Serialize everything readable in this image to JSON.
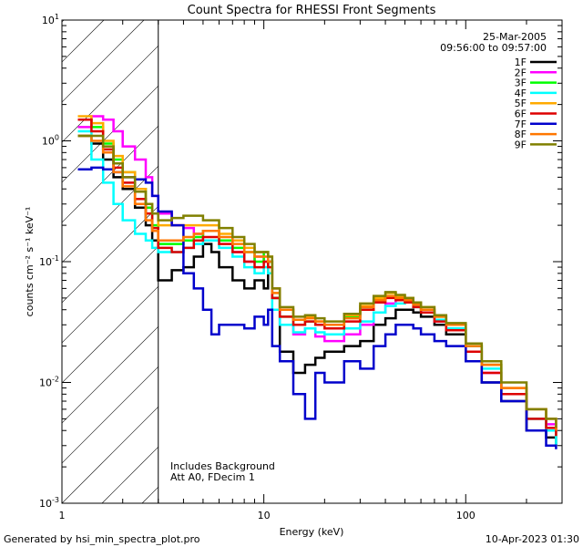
{
  "footer": {
    "generated_by": "Generated by hsi_min_spectra_plot.pro",
    "timestamp": "10-Apr-2023 01:30"
  },
  "chart_data": {
    "type": "line",
    "title": "Count Spectra for RHESSI Front Segments",
    "xlabel": "Energy (keV)",
    "ylabel": "counts cm⁻² s⁻¹ keV⁻¹",
    "x_scale": "log",
    "y_scale": "log",
    "xlim": [
      1,
      300
    ],
    "ylim": [
      0.001,
      10
    ],
    "x_ticks": [
      {
        "value": 1,
        "label": "1"
      },
      {
        "value": 10,
        "label": "10"
      },
      {
        "value": 100,
        "label": "100"
      }
    ],
    "y_ticks": [
      {
        "value": 0.001,
        "base": "10",
        "exp": "-3"
      },
      {
        "value": 0.01,
        "base": "10",
        "exp": "-2"
      },
      {
        "value": 0.1,
        "base": "10",
        "exp": "-1"
      },
      {
        "value": 1,
        "base": "10",
        "exp": "0"
      },
      {
        "value": 10,
        "base": "10",
        "exp": "1"
      }
    ],
    "date": "25-Mar-2005",
    "time_range": "09:56:00 to 09:57:00",
    "shaded_below_keV": 3,
    "annotations": [
      "Includes Background",
      "Att A0, FDecim 1"
    ],
    "series": [
      {
        "name": "1F",
        "color": "#000000",
        "x": [
          1.2,
          1.4,
          1.6,
          1.8,
          2.0,
          2.3,
          2.6,
          2.8,
          3.0,
          3.5,
          4.0,
          4.5,
          5.0,
          5.5,
          6.0,
          7.0,
          8.0,
          9.0,
          10.0,
          10.5,
          11,
          12,
          14,
          16,
          18,
          20,
          25,
          30,
          35,
          40,
          45,
          50,
          55,
          60,
          70,
          80,
          100,
          120,
          150,
          200,
          250,
          280
        ],
        "y": [
          1.1,
          0.95,
          0.7,
          0.5,
          0.4,
          0.28,
          0.2,
          0.15,
          0.07,
          0.085,
          0.09,
          0.11,
          0.14,
          0.12,
          0.09,
          0.07,
          0.06,
          0.07,
          0.06,
          0.1,
          0.05,
          0.018,
          0.012,
          0.014,
          0.016,
          0.018,
          0.02,
          0.022,
          0.03,
          0.034,
          0.04,
          0.04,
          0.038,
          0.035,
          0.03,
          0.025,
          0.015,
          0.01,
          0.007,
          0.004,
          0.0035,
          0.003
        ]
      },
      {
        "name": "2F",
        "color": "#ff00ff",
        "x": [
          1.2,
          1.4,
          1.6,
          1.8,
          2.0,
          2.3,
          2.6,
          2.8,
          3.0,
          3.5,
          4.0,
          4.5,
          5.0,
          6.0,
          7.0,
          8.0,
          9.0,
          10.0,
          10.5,
          11,
          12,
          14,
          16,
          18,
          20,
          25,
          30,
          35,
          40,
          45,
          50,
          55,
          60,
          70,
          80,
          100,
          120,
          150,
          200,
          250,
          280
        ],
        "y": [
          1.3,
          1.6,
          1.5,
          1.2,
          0.9,
          0.7,
          0.5,
          0.35,
          0.25,
          0.2,
          0.19,
          0.17,
          0.15,
          0.15,
          0.12,
          0.1,
          0.11,
          0.1,
          0.1,
          0.06,
          0.03,
          0.025,
          0.028,
          0.024,
          0.022,
          0.025,
          0.03,
          0.038,
          0.045,
          0.05,
          0.05,
          0.045,
          0.04,
          0.032,
          0.028,
          0.018,
          0.012,
          0.008,
          0.005,
          0.0045,
          0.004
        ]
      },
      {
        "name": "3F",
        "color": "#00ff00",
        "x": [
          1.2,
          1.4,
          1.6,
          1.8,
          2.0,
          2.3,
          2.6,
          2.8,
          3.0,
          3.5,
          4.0,
          4.5,
          5.0,
          6.0,
          7.0,
          8.0,
          9.0,
          10.0,
          10.5,
          11,
          12,
          14,
          16,
          18,
          20,
          25,
          30,
          35,
          40,
          45,
          50,
          55,
          60,
          70,
          80,
          100,
          120,
          150,
          200,
          250,
          280
        ],
        "y": [
          1.5,
          1.3,
          0.95,
          0.7,
          0.55,
          0.4,
          0.28,
          0.2,
          0.14,
          0.14,
          0.15,
          0.16,
          0.18,
          0.15,
          0.13,
          0.12,
          0.1,
          0.12,
          0.1,
          0.05,
          0.035,
          0.03,
          0.032,
          0.03,
          0.03,
          0.035,
          0.042,
          0.05,
          0.055,
          0.05,
          0.05,
          0.045,
          0.04,
          0.035,
          0.03,
          0.02,
          0.014,
          0.008,
          0.005,
          0.004,
          0.0035
        ]
      },
      {
        "name": "4F",
        "color": "#00ffff",
        "x": [
          1.2,
          1.4,
          1.6,
          1.8,
          2.0,
          2.3,
          2.6,
          2.8,
          3.0,
          3.5,
          4.0,
          4.5,
          5.0,
          6.0,
          7.0,
          8.0,
          9.0,
          10.0,
          10.5,
          11,
          12,
          14,
          16,
          18,
          20,
          25,
          30,
          35,
          40,
          45,
          50,
          55,
          60,
          70,
          80,
          100,
          120,
          150,
          200,
          250,
          280
        ],
        "y": [
          1.2,
          0.7,
          0.45,
          0.3,
          0.22,
          0.17,
          0.15,
          0.13,
          0.12,
          0.12,
          0.13,
          0.14,
          0.15,
          0.13,
          0.11,
          0.09,
          0.08,
          0.09,
          0.08,
          0.04,
          0.03,
          0.026,
          0.028,
          0.026,
          0.025,
          0.028,
          0.032,
          0.038,
          0.043,
          0.045,
          0.046,
          0.042,
          0.038,
          0.033,
          0.028,
          0.02,
          0.013,
          0.008,
          0.005,
          0.004,
          0.003
        ]
      },
      {
        "name": "5F",
        "color": "#ffaa00",
        "x": [
          1.2,
          1.4,
          1.6,
          1.8,
          2.0,
          2.3,
          2.6,
          2.8,
          3.0,
          3.5,
          4.0,
          4.5,
          5.0,
          6.0,
          7.0,
          8.0,
          9.0,
          10.0,
          10.5,
          11,
          12,
          14,
          16,
          18,
          20,
          25,
          30,
          35,
          40,
          45,
          50,
          55,
          60,
          70,
          80,
          100,
          120,
          150,
          200,
          250,
          280
        ],
        "y": [
          1.6,
          1.4,
          1.0,
          0.75,
          0.55,
          0.4,
          0.3,
          0.25,
          0.2,
          0.2,
          0.2,
          0.2,
          0.2,
          0.17,
          0.15,
          0.13,
          0.12,
          0.12,
          0.11,
          0.06,
          0.04,
          0.033,
          0.035,
          0.032,
          0.03,
          0.036,
          0.043,
          0.05,
          0.055,
          0.052,
          0.05,
          0.046,
          0.042,
          0.036,
          0.03,
          0.021,
          0.014,
          0.009,
          0.006,
          0.005,
          0.004
        ]
      },
      {
        "name": "6F",
        "color": "#dd0000",
        "x": [
          1.2,
          1.4,
          1.6,
          1.8,
          2.0,
          2.3,
          2.6,
          2.8,
          3.0,
          3.5,
          4.0,
          4.5,
          5.0,
          6.0,
          7.0,
          8.0,
          9.0,
          10.0,
          10.5,
          11,
          12,
          14,
          16,
          18,
          20,
          25,
          30,
          35,
          40,
          45,
          50,
          55,
          60,
          70,
          80,
          100,
          120,
          150,
          200,
          250,
          280
        ],
        "y": [
          1.5,
          1.2,
          0.85,
          0.6,
          0.45,
          0.33,
          0.25,
          0.19,
          0.13,
          0.12,
          0.13,
          0.15,
          0.16,
          0.14,
          0.12,
          0.1,
          0.09,
          0.1,
          0.09,
          0.05,
          0.035,
          0.03,
          0.032,
          0.03,
          0.028,
          0.032,
          0.04,
          0.046,
          0.05,
          0.048,
          0.046,
          0.042,
          0.038,
          0.032,
          0.027,
          0.018,
          0.012,
          0.008,
          0.005,
          0.0042,
          0.0036
        ]
      },
      {
        "name": "7F",
        "color": "#0000cc",
        "x": [
          1.2,
          1.4,
          1.6,
          1.8,
          2.0,
          2.3,
          2.6,
          2.8,
          3.0,
          3.5,
          4.0,
          4.5,
          5.0,
          5.5,
          6.0,
          7.0,
          8.0,
          9.0,
          10.0,
          10.5,
          11,
          12,
          14,
          16,
          18,
          20,
          25,
          30,
          35,
          40,
          45,
          50,
          55,
          60,
          70,
          80,
          100,
          120,
          150,
          200,
          250,
          280
        ],
        "y": [
          0.58,
          0.6,
          0.58,
          0.55,
          0.5,
          0.48,
          0.45,
          0.35,
          0.26,
          0.2,
          0.08,
          0.06,
          0.04,
          0.025,
          0.03,
          0.03,
          0.028,
          0.035,
          0.03,
          0.04,
          0.02,
          0.015,
          0.008,
          0.005,
          0.012,
          0.01,
          0.015,
          0.013,
          0.02,
          0.025,
          0.03,
          0.03,
          0.028,
          0.025,
          0.022,
          0.02,
          0.015,
          0.01,
          0.007,
          0.004,
          0.003,
          0.0028
        ]
      },
      {
        "name": "8F",
        "color": "#ff7700",
        "x": [
          1.2,
          1.4,
          1.6,
          1.8,
          2.0,
          2.3,
          2.6,
          2.8,
          3.0,
          3.5,
          4.0,
          4.5,
          5.0,
          6.0,
          7.0,
          8.0,
          9.0,
          10.0,
          10.5,
          11,
          12,
          14,
          16,
          18,
          20,
          25,
          30,
          35,
          40,
          45,
          50,
          55,
          60,
          70,
          80,
          100,
          120,
          150,
          200,
          250,
          280
        ],
        "y": [
          1.1,
          1.0,
          0.8,
          0.55,
          0.42,
          0.3,
          0.22,
          0.18,
          0.15,
          0.15,
          0.16,
          0.17,
          0.18,
          0.16,
          0.14,
          0.12,
          0.11,
          0.11,
          0.1,
          0.055,
          0.04,
          0.033,
          0.034,
          0.032,
          0.03,
          0.034,
          0.042,
          0.048,
          0.052,
          0.05,
          0.048,
          0.044,
          0.04,
          0.035,
          0.03,
          0.02,
          0.014,
          0.009,
          0.006,
          0.005,
          0.004
        ]
      },
      {
        "name": "9F",
        "color": "#808000",
        "x": [
          1.2,
          1.4,
          1.6,
          1.8,
          2.0,
          2.3,
          2.6,
          2.8,
          3.0,
          3.5,
          4.0,
          4.5,
          5.0,
          6.0,
          7.0,
          8.0,
          9.0,
          10.0,
          10.5,
          11,
          12,
          14,
          16,
          18,
          20,
          25,
          30,
          35,
          40,
          45,
          50,
          55,
          60,
          70,
          80,
          100,
          120,
          150,
          200,
          250,
          280
        ],
        "y": [
          1.1,
          1.1,
          0.9,
          0.65,
          0.5,
          0.38,
          0.3,
          0.25,
          0.22,
          0.23,
          0.24,
          0.24,
          0.22,
          0.19,
          0.16,
          0.14,
          0.12,
          0.12,
          0.11,
          0.06,
          0.042,
          0.035,
          0.036,
          0.034,
          0.032,
          0.037,
          0.045,
          0.052,
          0.056,
          0.053,
          0.05,
          0.046,
          0.042,
          0.036,
          0.031,
          0.021,
          0.015,
          0.01,
          0.006,
          0.005,
          0.0042
        ]
      }
    ]
  }
}
